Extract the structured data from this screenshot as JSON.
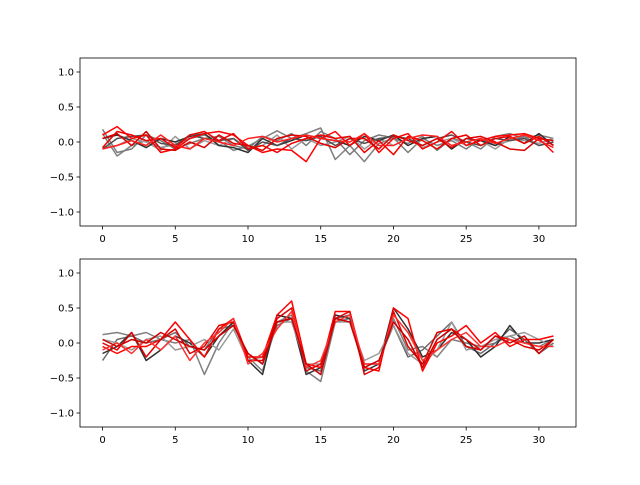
{
  "chart_data": [
    {
      "type": "line",
      "title": "",
      "xlabel": "",
      "ylabel": "",
      "xlim": [
        -1.55,
        32.55
      ],
      "ylim": [
        -1.2,
        1.2
      ],
      "xticks": [
        0,
        5,
        10,
        15,
        20,
        25,
        30
      ],
      "xtick_labels": [
        "0",
        "5",
        "10",
        "15",
        "20",
        "25",
        "30"
      ],
      "yticks": [
        1.0,
        0.5,
        0.0,
        -0.5,
        -1.0
      ],
      "ytick_labels": [
        "1.0",
        "0.5",
        "0.0",
        "−0.5",
        "−1.0"
      ],
      "grid": false,
      "legend": false,
      "x": [
        0,
        1,
        2,
        3,
        4,
        5,
        6,
        7,
        8,
        9,
        10,
        11,
        12,
        13,
        14,
        15,
        16,
        17,
        18,
        19,
        20,
        21,
        22,
        23,
        24,
        25,
        26,
        27,
        28,
        29,
        30,
        31
      ],
      "series": [
        {
          "color": "#808080",
          "values": [
            0.12,
            -0.2,
            -0.05,
            0.02,
            -0.08,
            -0.03,
            0.05,
            0.1,
            0.02,
            -0.12,
            -0.06,
            0.05,
            0.16,
            0.05,
            0.12,
            0.2,
            -0.25,
            -0.05,
            -0.28,
            -0.02,
            0.05,
            -0.02,
            0.08,
            -0.12,
            0.05,
            0.0,
            -0.1,
            0.08,
            0.12,
            0.05,
            0.1,
            0.05
          ]
        },
        {
          "color": "#7a7a7a",
          "values": [
            0.18,
            -0.15,
            -0.1,
            0.1,
            0.02,
            -0.1,
            -0.02,
            0.05,
            0.08,
            -0.05,
            -0.1,
            0.08,
            0.02,
            0.12,
            -0.05,
            0.15,
            0.05,
            -0.18,
            0.02,
            0.1,
            0.06,
            -0.15,
            0.05,
            -0.05,
            0.02,
            -0.1,
            0.05,
            -0.05,
            0.02,
            0.08,
            -0.05,
            0.0
          ]
        },
        {
          "color": "#9a9a9a",
          "values": [
            -0.08,
            -0.05,
            0.05,
            0.0,
            -0.12,
            0.08,
            -0.1,
            0.02,
            -0.05,
            0.05,
            -0.08,
            -0.05,
            0.1,
            -0.1,
            0.05,
            -0.05,
            0.0,
            0.08,
            -0.1,
            0.05,
            -0.05,
            0.05,
            -0.08,
            0.0,
            0.05,
            -0.05,
            0.02,
            -0.1,
            0.05,
            0.02,
            -0.02,
            0.05
          ]
        },
        {
          "color": "#303030",
          "values": [
            0.05,
            0.1,
            0.02,
            -0.08,
            0.05,
            0.0,
            0.08,
            0.12,
            -0.05,
            -0.08,
            -0.15,
            0.05,
            -0.05,
            0.02,
            0.1,
            0.05,
            0.02,
            -0.05,
            0.08,
            0.02,
            0.1,
            -0.05,
            0.05,
            0.08,
            -0.1,
            0.05,
            0.02,
            -0.05,
            0.08,
            -0.02,
            0.12,
            -0.05
          ]
        },
        {
          "color": "#505050",
          "values": [
            -0.1,
            0.05,
            0.08,
            0.1,
            -0.02,
            -0.05,
            0.1,
            0.05,
            0.02,
            0.05,
            -0.12,
            0.0,
            -0.05,
            0.05,
            0.02,
            0.08,
            -0.05,
            0.05,
            -0.02,
            0.05,
            0.08,
            0.05,
            -0.05,
            0.05,
            0.1,
            0.0,
            -0.05,
            0.05,
            0.02,
            0.05,
            -0.05,
            0.0
          ]
        },
        {
          "color": "#ff0000",
          "values": [
            0.1,
            0.22,
            0.05,
            0.1,
            -0.15,
            -0.1,
            0.05,
            0.12,
            0.15,
            0.1,
            -0.05,
            -0.15,
            -0.1,
            -0.12,
            -0.28,
            0.05,
            0.15,
            -0.05,
            0.12,
            -0.15,
            0.05,
            0.12,
            -0.1,
            0.0,
            0.15,
            -0.05,
            0.02,
            0.08,
            0.1,
            0.12,
            0.05,
            -0.15
          ]
        },
        {
          "color": "#ee0000",
          "values": [
            -0.08,
            0.15,
            0.1,
            0.02,
            0.05,
            -0.08,
            0.1,
            0.15,
            0.02,
            0.12,
            -0.1,
            -0.05,
            -0.15,
            -0.02,
            0.05,
            0.1,
            0.05,
            0.08,
            -0.15,
            0.02,
            -0.18,
            0.08,
            0.02,
            -0.1,
            0.05,
            0.1,
            -0.05,
            0.05,
            0.08,
            -0.02,
            0.08,
            -0.05
          ]
        },
        {
          "color": "#dd0000",
          "values": [
            0.05,
            0.12,
            -0.05,
            0.15,
            -0.1,
            -0.12,
            0.0,
            -0.08,
            0.1,
            -0.02,
            -0.05,
            -0.12,
            0.05,
            0.1,
            0.08,
            -0.02,
            -0.08,
            0.05,
            0.05,
            -0.1,
            0.1,
            0.02,
            -0.05,
            0.05,
            -0.08,
            0.05,
            0.08,
            0.0,
            -0.1,
            -0.12,
            0.05,
            0.02
          ]
        },
        {
          "color": "#ff2020",
          "values": [
            -0.1,
            -0.05,
            0.02,
            -0.05,
            0.1,
            -0.05,
            -0.1,
            0.05,
            0.0,
            -0.05,
            0.05,
            0.08,
            0.0,
            0.05,
            0.1,
            0.05,
            0.02,
            0.0,
            0.12,
            -0.05,
            -0.05,
            0.05,
            0.1,
            0.08,
            -0.05,
            0.0,
            0.05,
            -0.02,
            0.05,
            0.1,
            0.02,
            -0.08
          ]
        }
      ]
    },
    {
      "type": "line",
      "title": "",
      "xlabel": "",
      "ylabel": "",
      "xlim": [
        -1.55,
        32.55
      ],
      "ylim": [
        -1.2,
        1.2
      ],
      "xticks": [
        0,
        5,
        10,
        15,
        20,
        25,
        30
      ],
      "xtick_labels": [
        "0",
        "5",
        "10",
        "15",
        "20",
        "25",
        "30"
      ],
      "yticks": [
        1.0,
        0.5,
        0.0,
        -0.5,
        -1.0
      ],
      "ytick_labels": [
        "1.0",
        "0.5",
        "0.0",
        "−0.5",
        "−1.0"
      ],
      "grid": false,
      "legend": false,
      "x": [
        0,
        1,
        2,
        3,
        4,
        5,
        6,
        7,
        8,
        9,
        10,
        11,
        12,
        13,
        14,
        15,
        16,
        17,
        18,
        19,
        20,
        21,
        22,
        23,
        24,
        25,
        26,
        27,
        28,
        29,
        30,
        31
      ],
      "series": [
        {
          "color": "#808080",
          "values": [
            0.12,
            0.15,
            0.1,
            0.15,
            0.05,
            0.0,
            0.05,
            -0.45,
            0.0,
            0.3,
            -0.2,
            -0.4,
            0.3,
            0.4,
            -0.4,
            -0.55,
            0.3,
            0.35,
            -0.3,
            -0.3,
            0.35,
            -0.1,
            -0.05,
            -0.2,
            0.05,
            0.0,
            -0.05,
            0.0,
            0.1,
            0.0,
            -0.05,
            0.05
          ]
        },
        {
          "color": "#6a6a6a",
          "values": [
            -0.25,
            0.05,
            0.1,
            0.0,
            0.05,
            0.15,
            -0.05,
            -0.1,
            0.2,
            0.25,
            -0.15,
            -0.3,
            0.25,
            0.35,
            -0.35,
            -0.4,
            0.35,
            0.4,
            -0.35,
            -0.25,
            0.25,
            -0.2,
            -0.1,
            0.1,
            0.3,
            -0.05,
            -0.15,
            0.0,
            0.2,
            0.05,
            -0.15,
            0.0
          ]
        },
        {
          "color": "#303030",
          "values": [
            -0.15,
            -0.05,
            0.15,
            -0.25,
            -0.1,
            0.1,
            0.0,
            -0.2,
            0.1,
            0.3,
            -0.25,
            -0.45,
            0.4,
            0.35,
            -0.45,
            -0.35,
            0.4,
            0.35,
            -0.4,
            -0.3,
            0.5,
            0.2,
            -0.2,
            -0.1,
            0.15,
            0.05,
            -0.2,
            -0.05,
            0.25,
            0.0,
            0.0,
            0.05
          ]
        },
        {
          "color": "#999999",
          "values": [
            0.05,
            0.0,
            -0.1,
            0.05,
            0.1,
            -0.1,
            -0.05,
            0.05,
            -0.1,
            0.2,
            -0.25,
            -0.2,
            0.3,
            0.3,
            -0.3,
            -0.3,
            0.3,
            0.3,
            -0.25,
            -0.15,
            0.25,
            -0.15,
            -0.3,
            -0.1,
            0.3,
            -0.1,
            -0.05,
            0.05,
            0.1,
            0.15,
            0.05,
            -0.05
          ]
        },
        {
          "color": "#ff0000",
          "values": [
            -0.05,
            -0.15,
            -0.05,
            -0.05,
            0.05,
            0.3,
            0.05,
            -0.2,
            0.2,
            0.35,
            -0.2,
            -0.2,
            0.4,
            0.6,
            -0.3,
            -0.35,
            0.45,
            0.45,
            -0.35,
            -0.4,
            0.5,
            0.35,
            -0.4,
            0.0,
            0.1,
            0.25,
            0.0,
            0.15,
            -0.05,
            0.05,
            0.05,
            0.1
          ]
        },
        {
          "color": "#e00000",
          "values": [
            0.0,
            -0.1,
            0.15,
            -0.2,
            0.05,
            0.2,
            -0.15,
            -0.05,
            0.25,
            0.3,
            -0.25,
            -0.25,
            0.35,
            0.5,
            -0.4,
            -0.3,
            0.35,
            0.45,
            -0.45,
            -0.35,
            0.45,
            -0.05,
            -0.3,
            0.15,
            0.2,
            0.05,
            -0.1,
            0.1,
            0.05,
            -0.05,
            -0.1,
            0.05
          ]
        },
        {
          "color": "#ff3030",
          "values": [
            -0.1,
            0.0,
            -0.15,
            0.05,
            -0.1,
            0.1,
            -0.25,
            0.0,
            0.15,
            0.35,
            -0.3,
            -0.15,
            0.2,
            0.45,
            -0.35,
            -0.25,
            0.3,
            0.4,
            -0.3,
            -0.3,
            0.4,
            0.15,
            -0.25,
            -0.1,
            0.05,
            0.15,
            -0.05,
            -0.05,
            0.05,
            0.0,
            -0.05,
            -0.05
          ]
        },
        {
          "color": "#cc0000",
          "values": [
            0.05,
            -0.05,
            0.05,
            0.0,
            0.15,
            0.05,
            -0.05,
            -0.1,
            0.1,
            0.25,
            -0.15,
            -0.3,
            0.3,
            0.35,
            -0.3,
            -0.45,
            0.35,
            0.3,
            -0.35,
            -0.25,
            0.3,
            0.05,
            -0.35,
            0.05,
            0.2,
            -0.05,
            -0.1,
            0.1,
            0.0,
            0.1,
            -0.15,
            0.05
          ]
        }
      ]
    }
  ]
}
